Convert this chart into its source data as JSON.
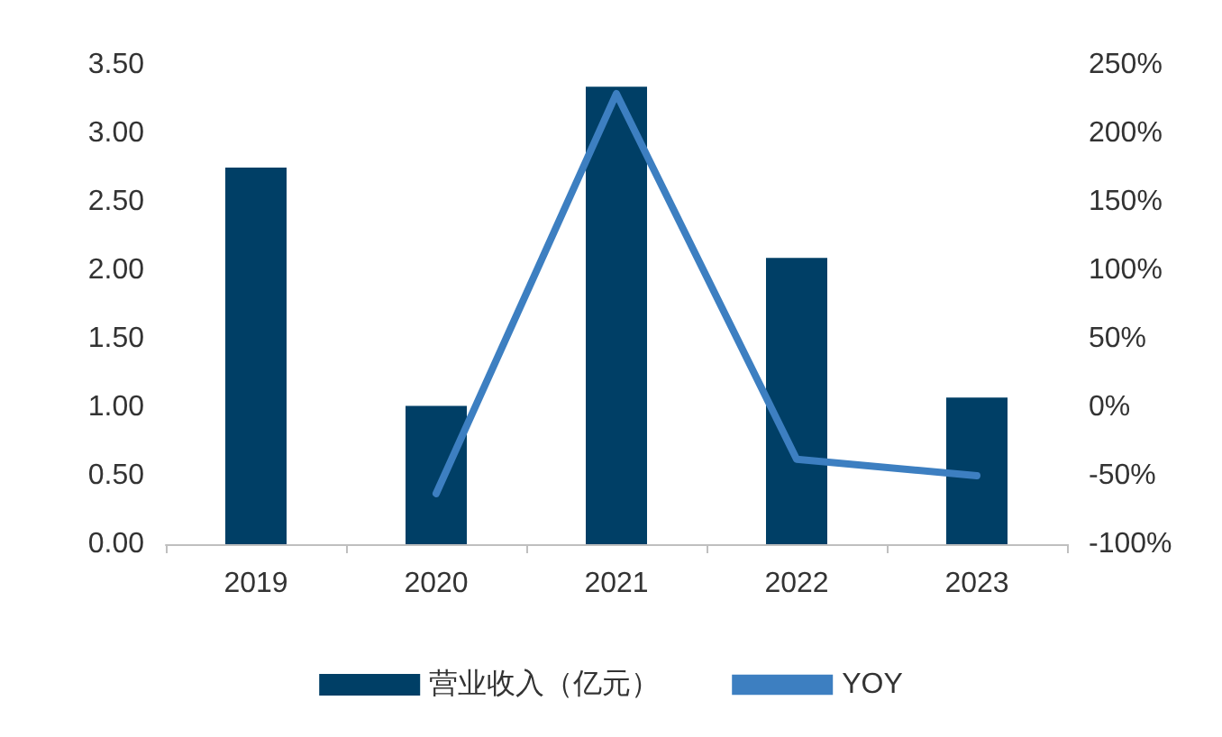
{
  "chart_data": {
    "type": "bar",
    "categories": [
      "2019",
      "2020",
      "2021",
      "2022",
      "2023"
    ],
    "series": [
      {
        "name": "营业收入（亿元）",
        "color": "#003f66",
        "values": [
          2.75,
          1.01,
          3.34,
          2.09,
          1.07
        ]
      },
      {
        "name": "YOY",
        "type": "line",
        "color": "#3d7fc1",
        "axis": "y2",
        "values": [
          null,
          -63,
          229,
          -38,
          -50
        ]
      }
    ],
    "ylim": [
      0,
      3.5
    ],
    "yticks": [
      {
        "value": 0,
        "label": "0.00"
      },
      {
        "value": 0.5,
        "label": "0.50"
      },
      {
        "value": 1,
        "label": "1.00"
      },
      {
        "value": 1.5,
        "label": "1.50"
      },
      {
        "value": 2,
        "label": "2.00"
      },
      {
        "value": 2.5,
        "label": "2.50"
      },
      {
        "value": 3,
        "label": "3.00"
      },
      {
        "value": 3.5,
        "label": "3.50"
      }
    ],
    "y2lim": [
      -100,
      250
    ],
    "y2ticks": [
      {
        "value": -100,
        "label": "-100%"
      },
      {
        "value": -50,
        "label": "-50%"
      },
      {
        "value": 0,
        "label": "0%"
      },
      {
        "value": 50,
        "label": "50%"
      },
      {
        "value": 100,
        "label": "100%"
      },
      {
        "value": 150,
        "label": "150%"
      },
      {
        "value": 200,
        "label": "200%"
      },
      {
        "value": 250,
        "label": "250%"
      }
    ],
    "grid": false,
    "legend": "bottom",
    "marker": "none",
    "line_style": "solid"
  }
}
